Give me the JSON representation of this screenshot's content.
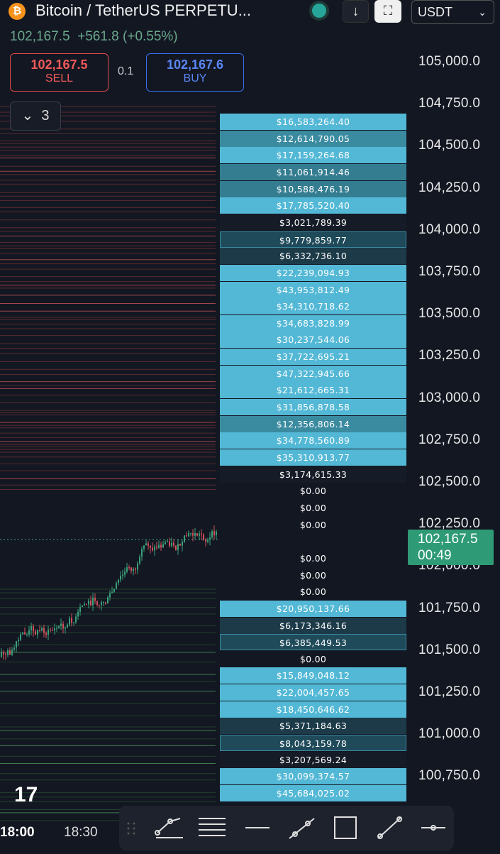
{
  "header": {
    "symbol": "Bitcoin / TetherUS PERPETU...",
    "currency": "USDT",
    "last_price": "102,167.5",
    "change": "+561.8 (+0.55%)"
  },
  "trade": {
    "sell_price": "102,167.5",
    "sell_label": "SELL",
    "spread": "0.1",
    "buy_price": "102,167.6",
    "buy_label": "BUY"
  },
  "indicators": {
    "count": "3"
  },
  "price_axis": {
    "labels": [
      "105,000.0",
      "104,750.0",
      "104,500.0",
      "104,250.0",
      "104,000.0",
      "103,750.0",
      "103,500.0",
      "103,250.0",
      "103,000.0",
      "102,750.0",
      "102,500.0",
      "102,250.0",
      "102,000.0",
      "101,750.0",
      "101,500.0",
      "101,250.0",
      "101,000.0",
      "100,750.0"
    ],
    "current_price": "102,167.5",
    "countdown": "00:49"
  },
  "order_book": {
    "rows": [
      {
        "label": "$16,583,264.40",
        "color": "#53b8d6"
      },
      {
        "label": "$12,614,790.05",
        "color": "#3a8aa0"
      },
      {
        "label": "$17,159,264.68",
        "color": "#53b8d6"
      },
      {
        "label": "$11,061,914.46",
        "color": "#347d91"
      },
      {
        "label": "$10,588,476.19",
        "color": "#347d91"
      },
      {
        "label": "$17,785,520.40",
        "color": "#53b8d6"
      },
      {
        "label": "$3,021,789.39",
        "color": "#161c27"
      },
      {
        "label": "$9,779,859.77",
        "color": "#1f4a5a"
      },
      {
        "label": "$6,332,736.10",
        "color": "#1c3a48"
      },
      {
        "label": "$22,239,094.93",
        "color": "#53b8d6"
      },
      {
        "label": "$43,953,812.49",
        "color": "#53b8d6"
      },
      {
        "label": "$34,310,718.62",
        "color": "#53b8d6"
      },
      {
        "label": "$34,683,828.99",
        "color": "#53b8d6"
      },
      {
        "label": "$30,237,544.06",
        "color": "#53b8d6"
      },
      {
        "label": "$37,722,695.21",
        "color": "#53b8d6"
      },
      {
        "label": "$47,322,945.66",
        "color": "#53b8d6"
      },
      {
        "label": "$21,612,665.31",
        "color": "#53b8d6"
      },
      {
        "label": "$31,856,878.58",
        "color": "#53b8d6"
      },
      {
        "label": "$12,356,806.14",
        "color": "#3a8aa0"
      },
      {
        "label": "$34,778,560.89",
        "color": "#53b8d6"
      },
      {
        "label": "$35,310,913.77",
        "color": "#53b8d6"
      },
      {
        "label": "$3,174,615.33",
        "color": "#161c27"
      },
      {
        "label": "$0.00",
        "color": "#131722"
      },
      {
        "label": "$0.00",
        "color": "#131722"
      },
      {
        "label": "$0.00",
        "color": "#131722"
      },
      {
        "label": null,
        "color": "#131722"
      },
      {
        "label": "$0.00",
        "color": "#131722"
      },
      {
        "label": "$0.00",
        "color": "#131722"
      },
      {
        "label": "$0.00",
        "color": "#131722"
      },
      {
        "label": "$20,950,137.66",
        "color": "#53b8d6"
      },
      {
        "label": "$6,173,346.16",
        "color": "#1c3a48"
      },
      {
        "label": "$6,385,449.53",
        "color": "#1f4a5a"
      },
      {
        "label": "$0.00",
        "color": "#131722"
      },
      {
        "label": "$15,849,048.12",
        "color": "#53b8d6"
      },
      {
        "label": "$22,004,457.65",
        "color": "#53b8d6"
      },
      {
        "label": "$18,450,646.62",
        "color": "#53b8d6"
      },
      {
        "label": "$5,371,184.63",
        "color": "#1c3a48"
      },
      {
        "label": "$8,043,159.78",
        "color": "#1f4a5a"
      },
      {
        "label": "$3,207,569.24",
        "color": "#161c27"
      },
      {
        "label": "$30,099,374.57",
        "color": "#53b8d6"
      },
      {
        "label": "$45,684,025.02",
        "color": "#53b8d6"
      }
    ]
  },
  "time_axis": {
    "labels": [
      "18:00",
      "18:30"
    ]
  }
}
